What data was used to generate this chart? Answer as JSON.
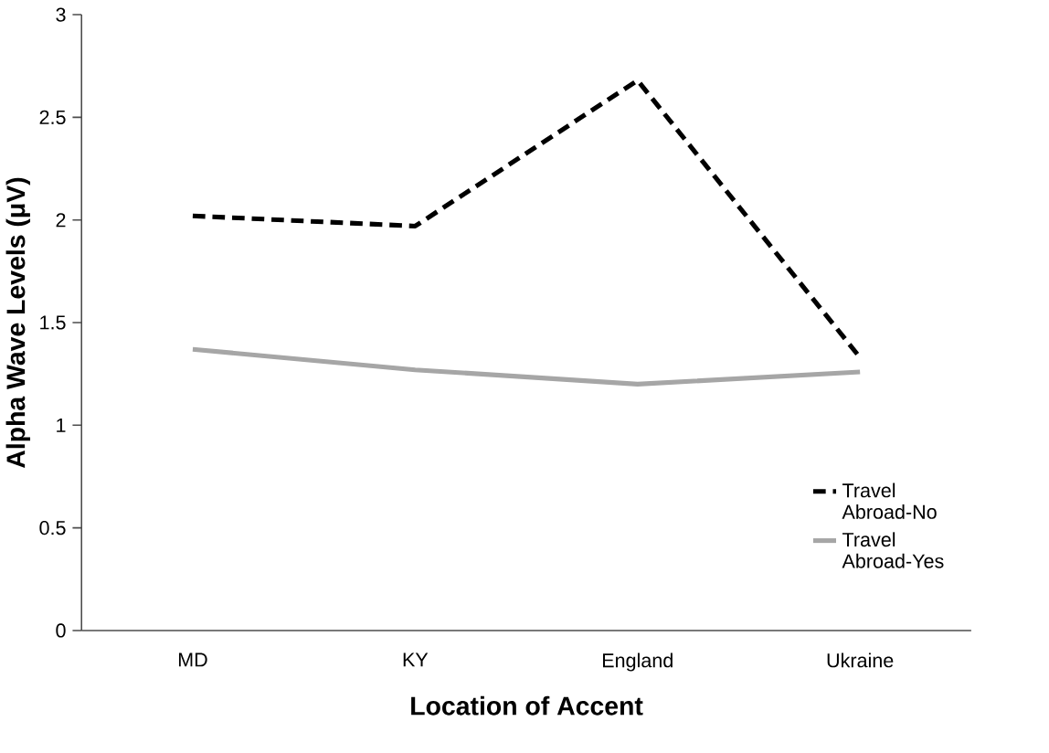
{
  "chart_data": {
    "type": "line",
    "xlabel": "Location of Accent",
    "ylabel": "Alpha Wave Levels (μV)",
    "categories": [
      "MD",
      "KY",
      "England",
      "Ukraine"
    ],
    "series": [
      {
        "name": "Travel Abroad-No",
        "color": "#000000",
        "line_style": "dashed",
        "values": [
          2.02,
          1.97,
          2.68,
          1.33
        ]
      },
      {
        "name": "Travel Abroad-Yes",
        "color": "#a6a6a6",
        "line_style": "solid",
        "values": [
          1.37,
          1.27,
          1.2,
          1.26
        ]
      }
    ],
    "ylim": [
      0,
      3
    ],
    "yticks": [
      0,
      0.5,
      1,
      1.5,
      2,
      2.5,
      3
    ],
    "grid": false,
    "legend": "bottom right",
    "marker": "none"
  }
}
